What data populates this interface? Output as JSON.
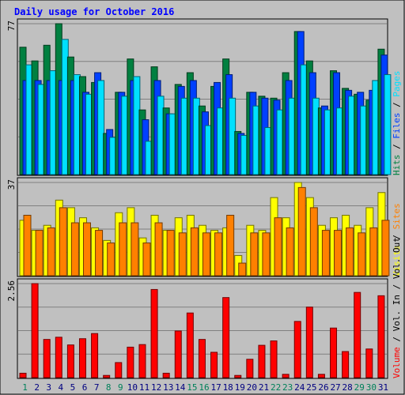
{
  "chart_data": [
    {
      "type": "bar",
      "title": "Daily usage for October 2016",
      "categories": [
        "1",
        "2",
        "3",
        "4",
        "5",
        "6",
        "7",
        "8",
        "9",
        "10",
        "11",
        "12",
        "13",
        "14",
        "15",
        "16",
        "17",
        "18",
        "19",
        "20",
        "21",
        "22",
        "23",
        "24",
        "25",
        "26",
        "27",
        "28",
        "29",
        "30",
        "31"
      ],
      "weekend_days": [
        "1",
        "8",
        "9",
        "15",
        "16",
        "22",
        "23",
        "29",
        "30"
      ],
      "ymax_label": "77",
      "legend": [
        "Hits",
        "Files",
        "Pages"
      ],
      "series": [
        {
          "name": "Hits",
          "color": "#008040",
          "values": [
            65,
            58,
            66,
            77,
            60,
            50,
            47,
            21,
            42,
            59,
            33,
            55,
            34,
            46,
            52,
            35,
            45,
            59,
            22,
            42,
            40,
            39,
            52,
            73,
            58,
            34,
            53,
            44,
            41,
            38,
            64
          ]
        },
        {
          "name": "Files",
          "color": "#0040ff",
          "values": [
            48,
            48,
            48,
            48,
            48,
            42,
            52,
            23,
            42,
            48,
            28,
            48,
            31,
            45,
            48,
            32,
            47,
            51,
            21,
            42,
            39,
            38,
            48,
            73,
            52,
            35,
            52,
            43,
            42,
            43,
            61
          ]
        },
        {
          "name": "Pages",
          "color": "#00e0ff",
          "values": [
            56,
            46,
            53,
            69,
            51,
            41,
            48,
            19,
            40,
            50,
            17,
            40,
            31,
            39,
            39,
            25,
            34,
            39,
            20,
            35,
            24,
            33,
            39,
            56,
            39,
            33,
            34,
            40,
            35,
            48,
            51
          ]
        }
      ]
    },
    {
      "type": "bar",
      "ymax_label": "37",
      "legend": [
        "Visits",
        "Sites"
      ],
      "series": [
        {
          "name": "Visits",
          "color": "#ffff00",
          "values": [
            22,
            18,
            20,
            30,
            27,
            23,
            19,
            14,
            25,
            27,
            15,
            24,
            18,
            23,
            24,
            20,
            18,
            19,
            8,
            20,
            18,
            31,
            23,
            37,
            31,
            20,
            23,
            24,
            20,
            27,
            33
          ]
        },
        {
          "name": "Sites",
          "color": "#ff8000",
          "values": [
            24,
            18,
            19,
            27,
            21,
            21,
            18,
            13,
            21,
            21,
            13,
            21,
            18,
            17,
            19,
            17,
            17,
            24,
            5,
            17,
            17,
            23,
            19,
            35,
            27,
            18,
            18,
            19,
            17,
            19,
            22
          ]
        }
      ]
    },
    {
      "type": "bar",
      "ymax_label": "2.56",
      "legend": [
        "Volume",
        "Vol. In",
        "Vol. Out"
      ],
      "series": [
        {
          "name": "Volume",
          "color": "#ff0000",
          "values": [
            0.12,
            2.56,
            1.04,
            1.1,
            0.89,
            1.06,
            1.2,
            0.06,
            0.41,
            0.83,
            0.9,
            2.4,
            0.12,
            1.27,
            1.76,
            1.04,
            0.69,
            2.18,
            0.06,
            0.5,
            0.88,
            1.0,
            0.09,
            1.53,
            1.92,
            0.09,
            1.35,
            0.71,
            2.32,
            0.78,
            2.23
          ]
        }
      ]
    }
  ]
}
